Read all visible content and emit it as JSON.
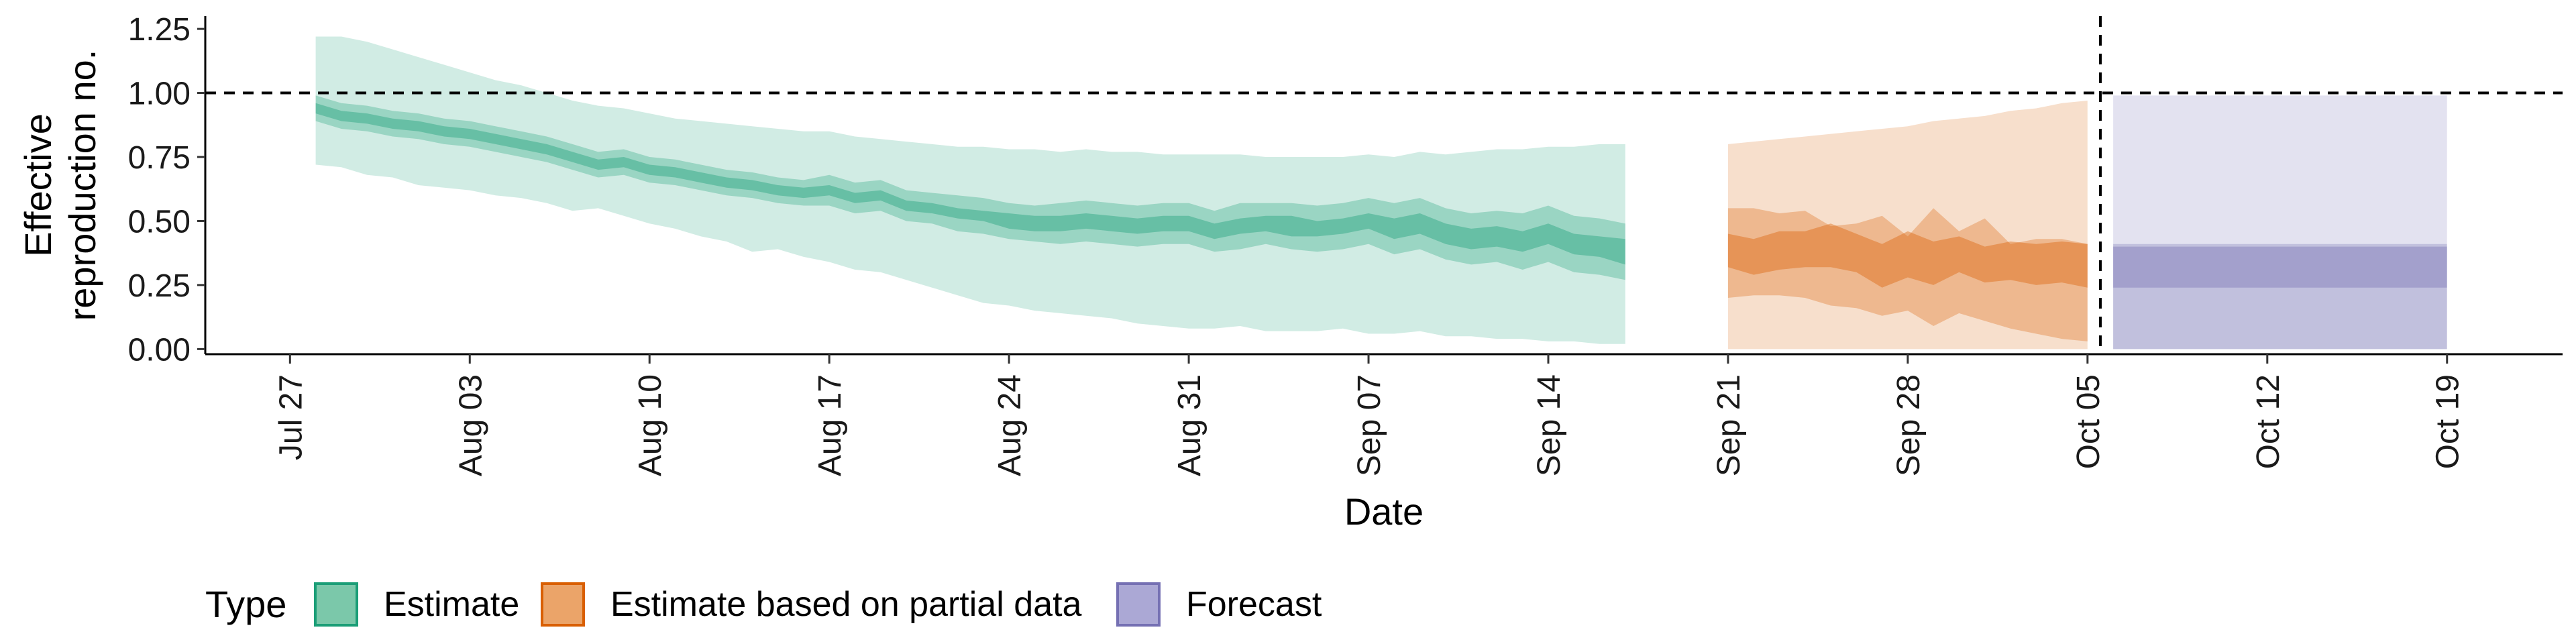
{
  "chart_data": {
    "type": "area",
    "xlabel": "Date",
    "ylabel_lines": [
      "Effective",
      "reproduction no."
    ],
    "x_start": "Jul 27",
    "x_ticks": [
      {
        "day": 0,
        "label": "Jul 27"
      },
      {
        "day": 7,
        "label": "Aug 03"
      },
      {
        "day": 14,
        "label": "Aug 10"
      },
      {
        "day": 21,
        "label": "Aug 17"
      },
      {
        "day": 28,
        "label": "Aug 24"
      },
      {
        "day": 35,
        "label": "Aug 31"
      },
      {
        "day": 42,
        "label": "Sep 07"
      },
      {
        "day": 49,
        "label": "Sep 14"
      },
      {
        "day": 56,
        "label": "Sep 21"
      },
      {
        "day": 63,
        "label": "Sep 28"
      },
      {
        "day": 70,
        "label": "Oct 05"
      },
      {
        "day": 77,
        "label": "Oct 12"
      },
      {
        "day": 84,
        "label": "Oct 19"
      }
    ],
    "y_ticks": [
      {
        "value": 0.0,
        "label": "0.00"
      },
      {
        "value": 0.25,
        "label": "0.25"
      },
      {
        "value": 0.5,
        "label": "0.50"
      },
      {
        "value": 0.75,
        "label": "0.75"
      },
      {
        "value": 1.0,
        "label": "1.00"
      },
      {
        "value": 1.25,
        "label": "1.25"
      }
    ],
    "ylim": [
      -0.02,
      1.3
    ],
    "xlim": [
      -3.3,
      88.5
    ],
    "reference_line_y": 1.0,
    "reference_line_x_day": 70.5,
    "series": [
      {
        "name": "Estimate",
        "color": "#1b9e77",
        "x": [
          1,
          2,
          3,
          4,
          5,
          6,
          7,
          8,
          9,
          10,
          11,
          12,
          13,
          14,
          15,
          16,
          17,
          18,
          19,
          20,
          21,
          22,
          23,
          24,
          25,
          26,
          27,
          28,
          29,
          30,
          31,
          32,
          33,
          34,
          35,
          36,
          37,
          38,
          39,
          40,
          41,
          42,
          43,
          44,
          45,
          46,
          47,
          48,
          49,
          50,
          51,
          52
        ],
        "median": [
          0.94,
          0.91,
          0.9,
          0.88,
          0.87,
          0.85,
          0.84,
          0.82,
          0.8,
          0.78,
          0.75,
          0.72,
          0.73,
          0.7,
          0.69,
          0.67,
          0.65,
          0.64,
          0.62,
          0.61,
          0.62,
          0.59,
          0.6,
          0.56,
          0.55,
          0.53,
          0.52,
          0.5,
          0.49,
          0.49,
          0.5,
          0.49,
          0.48,
          0.49,
          0.49,
          0.46,
          0.48,
          0.49,
          0.48,
          0.47,
          0.48,
          0.5,
          0.47,
          0.49,
          0.45,
          0.43,
          0.44,
          0.42,
          0.45,
          0.41,
          0.4,
          0.38
        ],
        "lower50": [
          0.89,
          0.86,
          0.85,
          0.83,
          0.82,
          0.8,
          0.79,
          0.77,
          0.75,
          0.73,
          0.7,
          0.67,
          0.68,
          0.65,
          0.64,
          0.62,
          0.6,
          0.59,
          0.57,
          0.56,
          0.56,
          0.53,
          0.54,
          0.5,
          0.49,
          0.46,
          0.45,
          0.43,
          0.42,
          0.41,
          0.42,
          0.41,
          0.4,
          0.41,
          0.41,
          0.38,
          0.39,
          0.41,
          0.39,
          0.38,
          0.39,
          0.41,
          0.37,
          0.39,
          0.35,
          0.33,
          0.34,
          0.31,
          0.34,
          0.3,
          0.29,
          0.27
        ],
        "upper50": [
          0.99,
          0.96,
          0.95,
          0.93,
          0.92,
          0.9,
          0.89,
          0.87,
          0.85,
          0.83,
          0.8,
          0.77,
          0.78,
          0.75,
          0.74,
          0.72,
          0.7,
          0.69,
          0.67,
          0.66,
          0.68,
          0.65,
          0.66,
          0.62,
          0.61,
          0.6,
          0.59,
          0.57,
          0.56,
          0.57,
          0.58,
          0.57,
          0.56,
          0.57,
          0.57,
          0.54,
          0.57,
          0.57,
          0.57,
          0.56,
          0.57,
          0.59,
          0.57,
          0.59,
          0.55,
          0.53,
          0.54,
          0.53,
          0.56,
          0.52,
          0.51,
          0.49
        ],
        "lower20": [
          0.92,
          0.89,
          0.88,
          0.86,
          0.85,
          0.83,
          0.82,
          0.8,
          0.78,
          0.76,
          0.73,
          0.7,
          0.71,
          0.68,
          0.67,
          0.65,
          0.63,
          0.62,
          0.6,
          0.59,
          0.6,
          0.57,
          0.58,
          0.54,
          0.53,
          0.51,
          0.5,
          0.47,
          0.46,
          0.46,
          0.47,
          0.46,
          0.45,
          0.46,
          0.46,
          0.43,
          0.45,
          0.46,
          0.44,
          0.44,
          0.45,
          0.47,
          0.43,
          0.45,
          0.41,
          0.39,
          0.4,
          0.38,
          0.41,
          0.37,
          0.36,
          0.33
        ],
        "upper20": [
          0.96,
          0.93,
          0.92,
          0.9,
          0.89,
          0.87,
          0.86,
          0.84,
          0.82,
          0.8,
          0.77,
          0.74,
          0.75,
          0.72,
          0.71,
          0.69,
          0.67,
          0.66,
          0.64,
          0.63,
          0.64,
          0.61,
          0.62,
          0.58,
          0.57,
          0.55,
          0.54,
          0.53,
          0.52,
          0.52,
          0.53,
          0.52,
          0.51,
          0.52,
          0.52,
          0.49,
          0.51,
          0.52,
          0.52,
          0.5,
          0.51,
          0.53,
          0.51,
          0.53,
          0.49,
          0.47,
          0.48,
          0.46,
          0.49,
          0.45,
          0.44,
          0.43
        ],
        "lower90": [
          0.72,
          0.71,
          0.68,
          0.67,
          0.64,
          0.63,
          0.62,
          0.6,
          0.59,
          0.57,
          0.54,
          0.55,
          0.52,
          0.49,
          0.47,
          0.44,
          0.42,
          0.38,
          0.39,
          0.36,
          0.34,
          0.31,
          0.3,
          0.27,
          0.24,
          0.21,
          0.18,
          0.17,
          0.15,
          0.14,
          0.13,
          0.12,
          0.1,
          0.09,
          0.08,
          0.08,
          0.09,
          0.07,
          0.07,
          0.07,
          0.08,
          0.06,
          0.06,
          0.07,
          0.05,
          0.05,
          0.04,
          0.04,
          0.03,
          0.03,
          0.02,
          0.02
        ],
        "upper90": [
          1.22,
          1.22,
          1.2,
          1.17,
          1.14,
          1.11,
          1.08,
          1.05,
          1.03,
          1.0,
          0.97,
          0.95,
          0.94,
          0.92,
          0.9,
          0.89,
          0.88,
          0.87,
          0.86,
          0.85,
          0.85,
          0.83,
          0.82,
          0.81,
          0.8,
          0.79,
          0.79,
          0.78,
          0.78,
          0.77,
          0.78,
          0.77,
          0.77,
          0.76,
          0.76,
          0.76,
          0.76,
          0.75,
          0.75,
          0.75,
          0.75,
          0.76,
          0.75,
          0.77,
          0.76,
          0.77,
          0.78,
          0.78,
          0.79,
          0.79,
          0.8,
          0.8
        ]
      },
      {
        "name": "Estimate based on partial data",
        "color": "#d95f02",
        "x": [
          56,
          57,
          58,
          59,
          60,
          61,
          62,
          63,
          64,
          65,
          66,
          67,
          68,
          69,
          70
        ],
        "median": [
          0.39,
          0.36,
          0.39,
          0.39,
          0.41,
          0.38,
          0.33,
          0.38,
          0.33,
          0.37,
          0.32,
          0.35,
          0.33,
          0.34,
          0.33
        ],
        "lower50": [
          0.2,
          0.21,
          0.21,
          0.2,
          0.17,
          0.16,
          0.13,
          0.15,
          0.09,
          0.14,
          0.11,
          0.08,
          0.06,
          0.04,
          0.03
        ],
        "upper50": [
          0.55,
          0.55,
          0.53,
          0.54,
          0.48,
          0.49,
          0.52,
          0.44,
          0.55,
          0.46,
          0.51,
          0.41,
          0.43,
          0.43,
          0.41
        ],
        "lower20": [
          0.32,
          0.29,
          0.31,
          0.32,
          0.32,
          0.3,
          0.24,
          0.28,
          0.25,
          0.3,
          0.26,
          0.27,
          0.25,
          0.26,
          0.24
        ],
        "upper20": [
          0.45,
          0.43,
          0.46,
          0.46,
          0.49,
          0.45,
          0.41,
          0.46,
          0.42,
          0.44,
          0.4,
          0.42,
          0.41,
          0.42,
          0.41
        ],
        "lower90": [
          0.0,
          0.0,
          0.0,
          0.0,
          0.0,
          0.0,
          0.0,
          0.0,
          0.0,
          0.0,
          0.0,
          0.0,
          0.0,
          0.0,
          0.0
        ],
        "upper90": [
          0.8,
          0.81,
          0.82,
          0.83,
          0.84,
          0.85,
          0.86,
          0.87,
          0.89,
          0.9,
          0.91,
          0.93,
          0.94,
          0.96,
          0.97
        ]
      },
      {
        "name": "Forecast",
        "color": "#7570b3",
        "x": [
          71,
          72,
          73,
          74,
          75,
          76,
          77,
          78,
          79,
          80,
          81,
          82,
          83,
          84
        ],
        "median": [
          0.33,
          0.33,
          0.33,
          0.33,
          0.33,
          0.33,
          0.33,
          0.33,
          0.33,
          0.33,
          0.33,
          0.33,
          0.33,
          0.33
        ],
        "lower50": [
          0.0,
          0.0,
          0.0,
          0.0,
          0.0,
          0.0,
          0.0,
          0.0,
          0.0,
          0.0,
          0.0,
          0.0,
          0.0,
          0.0
        ],
        "upper50": [
          0.41,
          0.41,
          0.41,
          0.41,
          0.41,
          0.41,
          0.41,
          0.41,
          0.41,
          0.41,
          0.41,
          0.41,
          0.41,
          0.41
        ],
        "lower20": [
          0.24,
          0.24,
          0.24,
          0.24,
          0.24,
          0.24,
          0.24,
          0.24,
          0.24,
          0.24,
          0.24,
          0.24,
          0.24,
          0.24
        ],
        "upper20": [
          0.4,
          0.4,
          0.4,
          0.4,
          0.4,
          0.4,
          0.4,
          0.4,
          0.4,
          0.4,
          0.4,
          0.4,
          0.4,
          0.4
        ],
        "lower90": [
          0.0,
          0.0,
          0.0,
          0.0,
          0.0,
          0.0,
          0.0,
          0.0,
          0.0,
          0.0,
          0.0,
          0.0,
          0.0,
          0.0
        ],
        "upper90": [
          0.99,
          0.99,
          0.99,
          0.99,
          0.99,
          0.99,
          0.99,
          0.99,
          0.99,
          0.99,
          0.99,
          0.99,
          0.99,
          0.99
        ]
      }
    ],
    "legend": {
      "title": "Type",
      "placement": "bottom",
      "items": [
        {
          "label": "Estimate",
          "fill": "#7bc8aa",
          "stroke": "#1b9e77"
        },
        {
          "label": "Estimate based on partial data",
          "fill": "#eba469",
          "stroke": "#d95f02"
        },
        {
          "label": "Forecast",
          "fill": "#aba8d5",
          "stroke": "#7570b3"
        }
      ]
    },
    "band_opacities": {
      "interval_90": 0.2,
      "interval_50": 0.3,
      "interval_20": 0.4
    }
  }
}
